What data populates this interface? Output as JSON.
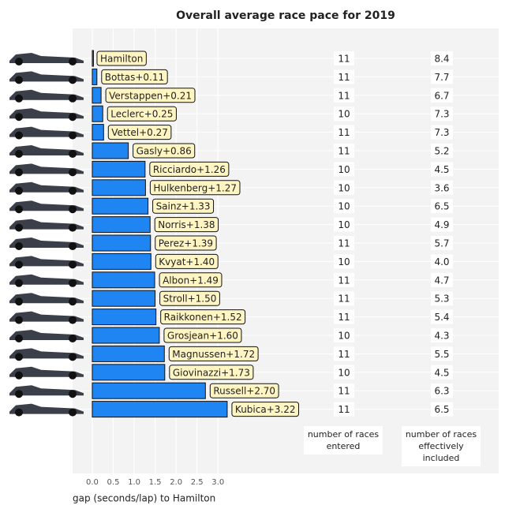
{
  "chart_data": {
    "type": "bar",
    "orientation": "horizontal",
    "title": "Overall average race pace for 2019",
    "x_label": "gap (seconds/lap) to Hamilton",
    "value_labels": [
      "Hamilton",
      "Bottas+0.11",
      "Verstappen+0.21",
      "Leclerc+0.25",
      "Vettel+0.27",
      "Gasly+0.86",
      "Ricciardo+1.26",
      "Hulkenberg+1.27",
      "Sainz+1.33",
      "Norris+1.38",
      "Perez+1.39",
      "Kvyat+1.40",
      "Albon+1.49",
      "Stroll+1.50",
      "Raikkonen+1.52",
      "Grosjean+1.60",
      "Magnussen+1.72",
      "Giovinazzi+1.73",
      "Russell+2.70",
      "Kubica+3.22"
    ],
    "values": [
      0,
      0.11,
      0.21,
      0.25,
      0.27,
      0.86,
      1.26,
      1.27,
      1.33,
      1.38,
      1.39,
      1.4,
      1.49,
      1.5,
      1.52,
      1.6,
      1.72,
      1.73,
      2.7,
      3.22
    ],
    "color": "#1f85f2",
    "xlim": [
      -0.47,
      9.7
    ],
    "xticks": [
      {
        "value": 0,
        "label": "0.0"
      },
      0.5,
      {
        "value": 1,
        "label": "1.0"
      },
      1.5,
      {
        "value": 2,
        "label": "2.0"
      },
      2.5,
      {
        "value": 3,
        "label": "3.0"
      }
    ],
    "grid": true,
    "races_entered_header": "number of races entered",
    "races_entered": [
      11,
      11,
      11,
      10,
      11,
      11,
      10,
      10,
      10,
      10,
      11,
      10,
      11,
      11,
      11,
      10,
      11,
      10,
      11,
      11
    ],
    "races_included_header": "number of races effectively included",
    "races_included": [
      8.4,
      7.7,
      6.7,
      7.3,
      7.3,
      5.2,
      4.5,
      3.6,
      6.5,
      4.9,
      5.7,
      {
        "value": 4,
        "label": "4.0"
      },
      4.7,
      5.3,
      5.4,
      4.3,
      5.5,
      4.5,
      6.3,
      6.5
    ]
  }
}
